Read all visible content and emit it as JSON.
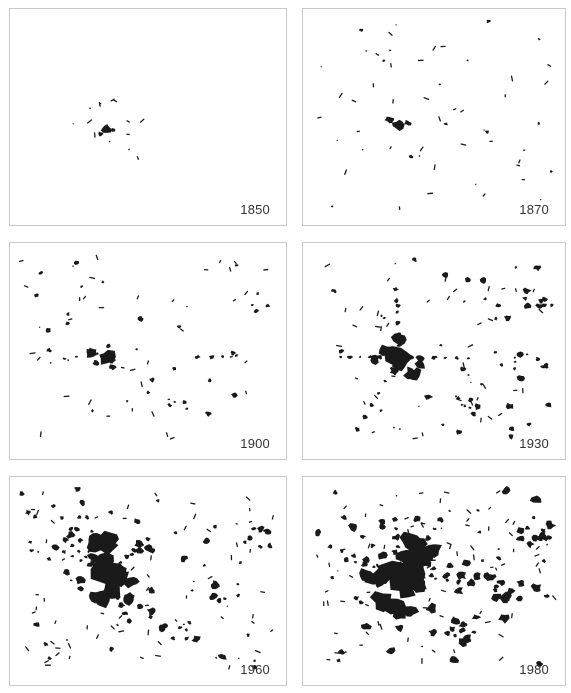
{
  "figure": {
    "ink_color": "#1a1a1a",
    "panels": [
      {
        "year": "1850",
        "stage": 0
      },
      {
        "year": "1870",
        "stage": 1
      },
      {
        "year": "1900",
        "stage": 2
      },
      {
        "year": "1930",
        "stage": 3
      },
      {
        "year": "1960",
        "stage": 4
      },
      {
        "year": "1980",
        "stage": 5
      }
    ]
  }
}
